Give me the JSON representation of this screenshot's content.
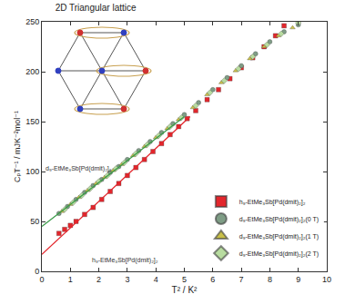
{
  "chart_data": {
    "type": "scatter",
    "title": "2D Triangular lattice",
    "x_label": "T² / K²",
    "y_label": "CₚT⁻¹ / mJK⁻²mol⁻¹",
    "xlim": [
      0,
      10
    ],
    "ylim": [
      0,
      250
    ],
    "xticks": [
      0,
      1,
      2,
      3,
      4,
      5,
      6,
      7,
      8,
      9,
      10
    ],
    "yticks": [
      0,
      50,
      100,
      150,
      200,
      250
    ],
    "legend": "lower right",
    "annotations": [
      {
        "text": "d₉-EtMe₃Sb[Pd(dmit)₂]₂",
        "x": 0.05,
        "y": 103
      },
      {
        "text": "h₉-EtMe₃Sb[Pd(dmit)₂]₂",
        "x": 1.7,
        "y": 11
      }
    ],
    "series": [
      {
        "name": "h₉-EtMe₃Sb[Pd(dmit)₂]₂",
        "type": "scatter",
        "color": "#e3262c",
        "marker": "square",
        "x": [
          0.6,
          0.8,
          1.0,
          1.2,
          1.5,
          1.8,
          2.1,
          2.4,
          2.7,
          3.0,
          3.3,
          3.6,
          3.9,
          4.2,
          4.5,
          4.8,
          5.1,
          5.4,
          5.8,
          6.2,
          6.6,
          7.0,
          7.4,
          7.8,
          8.2,
          8.5
        ],
        "values": [
          38,
          42,
          46,
          50,
          57,
          64,
          72,
          80,
          88,
          96,
          104,
          112,
          120,
          128,
          137,
          145,
          153,
          161,
          172,
          182,
          193,
          204,
          214,
          225,
          236,
          246
        ]
      },
      {
        "name": "d₉-EtMe₃Sb[Pd(dmit)₂]₂(0 T)",
        "type": "scatter",
        "color": "#7f9d86",
        "marker": "circle",
        "x": [
          0.6,
          0.9,
          1.2,
          1.5,
          1.8,
          2.1,
          2.4,
          2.7,
          3.0,
          3.4,
          3.8,
          4.2,
          4.6,
          5.0,
          5.5,
          6.0,
          6.5,
          7.0,
          7.5,
          8.0,
          8.5,
          9.0
        ],
        "values": [
          58,
          65,
          72,
          79,
          86,
          92,
          99,
          105,
          112,
          121,
          130,
          139,
          148,
          157,
          169,
          182,
          194,
          206,
          218,
          230,
          240,
          247
        ]
      },
      {
        "name": "d₉-EtMe₃Sb[Pd(dmit)₂]₂(1 T)",
        "type": "scatter",
        "color": "#c9c04a",
        "marker": "triangle-up",
        "x": [
          0.7,
          1.0,
          1.3,
          1.6,
          1.9,
          2.2,
          2.5,
          2.8,
          3.2,
          3.6,
          4.0,
          4.4,
          4.8,
          5.3,
          5.8,
          6.3,
          6.8,
          7.3,
          7.8,
          8.3,
          8.8
        ],
        "values": [
          60,
          67,
          74,
          81,
          88,
          94,
          101,
          107,
          116,
          125,
          134,
          143,
          152,
          164,
          177,
          189,
          201,
          213,
          225,
          236,
          244
        ]
      },
      {
        "name": "d₉-EtMe₃Sb[Pd(dmit)₂]₂(2 T)",
        "type": "scatter",
        "color": "#b8dca0",
        "marker": "diamond",
        "x": [
          0.8,
          1.1,
          1.4,
          1.7,
          2.0,
          2.3,
          2.6,
          2.9,
          3.3,
          3.7,
          4.1,
          4.5,
          4.9,
          5.4,
          5.9,
          6.4,
          6.9,
          7.4,
          7.9,
          8.4,
          9.0
        ],
        "values": [
          62,
          69,
          76,
          83,
          90,
          96,
          103,
          109,
          118,
          127,
          136,
          145,
          154,
          166,
          179,
          191,
          203,
          215,
          227,
          238,
          249
        ]
      },
      {
        "type": "line",
        "color": "#e3262c",
        "line_style": "solid",
        "x": [
          0,
          5.2
        ],
        "values": [
          17,
          155
        ]
      },
      {
        "type": "line",
        "color": "#3a9a48",
        "line_style": "solid",
        "x": [
          0,
          5.0
        ],
        "values": [
          45,
          155
        ]
      }
    ]
  }
}
